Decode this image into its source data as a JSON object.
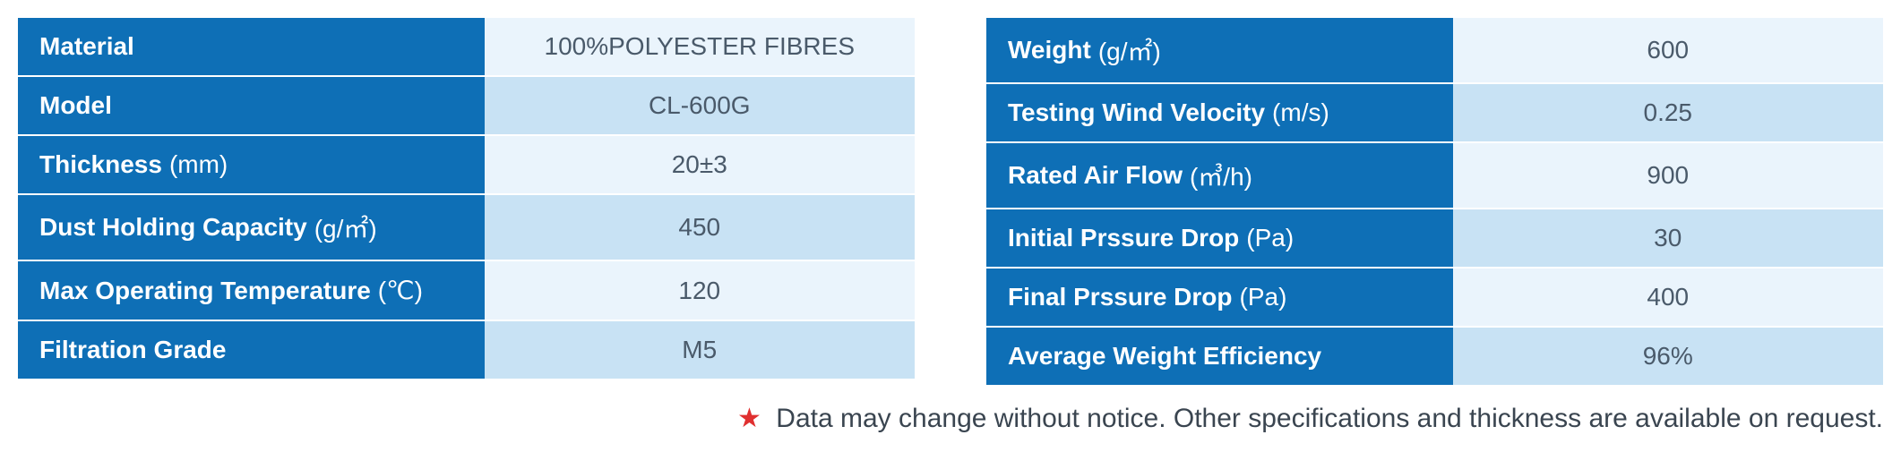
{
  "left_table": {
    "rows": [
      {
        "label": "Material",
        "unit": "",
        "value": "100%POLYESTER FIBRES",
        "shade": "light"
      },
      {
        "label": "Model",
        "unit": "",
        "value": "CL-600G",
        "shade": "dark"
      },
      {
        "label": "Thickness",
        "unit": "(mm)",
        "value": "20±3",
        "shade": "light"
      },
      {
        "label": "Dust Holding Capacity",
        "unit": "(g/㎡)",
        "value": "450",
        "shade": "dark"
      },
      {
        "label": "Max Operating Temperature",
        "unit": "(℃)",
        "value": "120",
        "shade": "light"
      },
      {
        "label": "Filtration Grade",
        "unit": "",
        "value": "M5",
        "shade": "dark"
      }
    ]
  },
  "right_table": {
    "rows": [
      {
        "label": "Weight",
        "unit": "(g/㎡)",
        "value": "600",
        "shade": "light"
      },
      {
        "label": "Testing Wind Velocity",
        "unit": "(m/s)",
        "value": "0.25",
        "shade": "dark"
      },
      {
        "label": "Rated Air Flow",
        "unit": "(㎥/h)",
        "value": "900",
        "shade": "light"
      },
      {
        "label": "Initial Prssure Drop",
        "unit": "(Pa)",
        "value": "30",
        "shade": "dark"
      },
      {
        "label": "Final Prssure Drop",
        "unit": "(Pa)",
        "value": "400",
        "shade": "light"
      },
      {
        "label": "Average Weight Efficiency",
        "unit": "",
        "value": "96%",
        "shade": "dark"
      }
    ]
  },
  "footnote": {
    "star": "★",
    "text": "Data may change without notice. Other specifications and thickness are available on request."
  },
  "colors": {
    "header_bg": "#0e6fb6",
    "value_light": "#eaf4fc",
    "value_dark": "#c8e2f4",
    "text_value": "#4a5a6a",
    "star": "#e03030"
  }
}
